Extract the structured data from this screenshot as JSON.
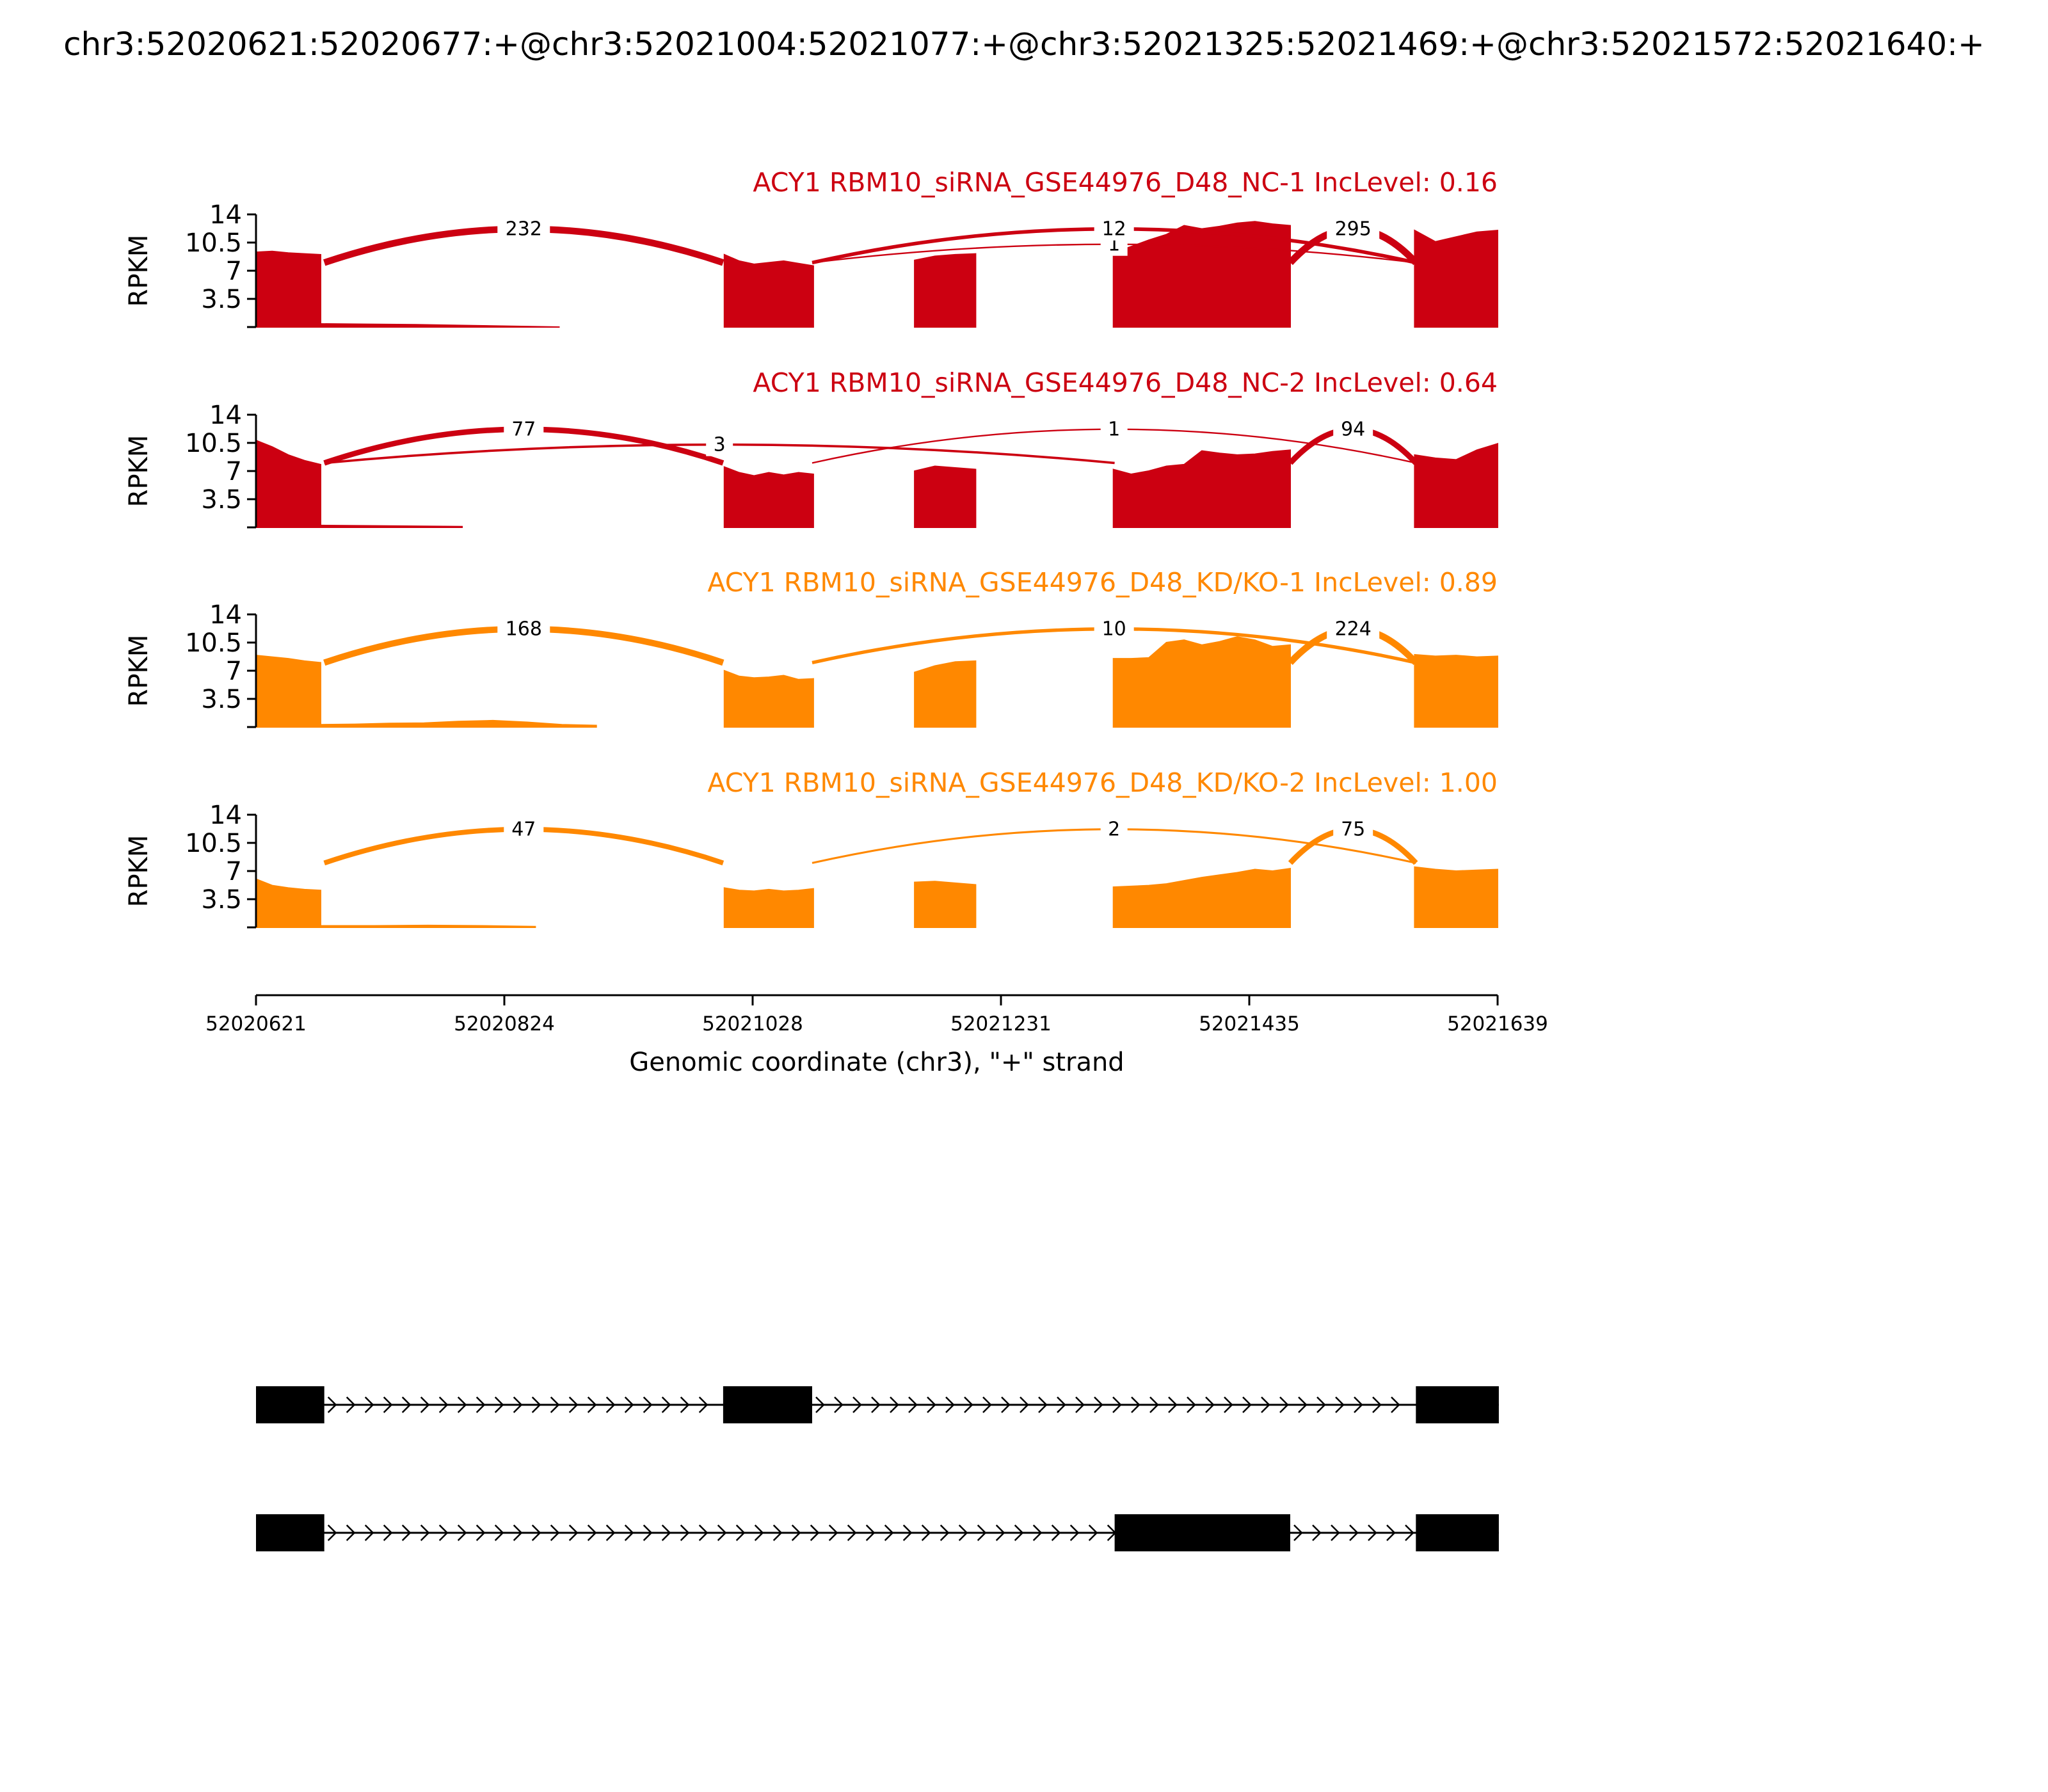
{
  "title": "chr3:52020621:52020677:+@chr3:52021004:52021077:+@chr3:52021325:52021469:+@chr3:52021572:52021640:+",
  "chart_data": {
    "type": "sashimi",
    "xlabel": "Genomic coordinate (chr3), \"+\" strand",
    "ylabel": "RPKM",
    "xlim": [
      52020621,
      52021639
    ],
    "xticks": [
      "52020621",
      "52020824",
      "52021028",
      "52021231",
      "52021435",
      "52021639"
    ],
    "ylim": [
      0,
      14
    ],
    "yticks": [
      "3.5",
      "7",
      "10.5",
      "14"
    ],
    "exons": [
      [
        52020621,
        52020677
      ],
      [
        52021004,
        52021077
      ],
      [
        52021161,
        52021211
      ],
      [
        52021325,
        52021469
      ],
      [
        52021572,
        52021640
      ]
    ],
    "panels": [
      {
        "label": "ACY1 RBM10_siRNA_GSE44976_D48_NC-1 IncLevel: 0.16",
        "color": "#cc0011",
        "coverage": [
          {
            "start": 52020621,
            "end": 52020674,
            "levels": [
              9.3,
              9.4,
              9.2,
              9.1,
              9.0
            ]
          },
          {
            "start": 52020674,
            "end": 52020870,
            "levels": [
              0.4,
              0.35,
              0.3,
              0.2,
              0.1,
              0.0
            ]
          },
          {
            "start": 52020945,
            "end": 52020945,
            "levels": [
              0
            ]
          },
          {
            "start": 52021005,
            "end": 52021078,
            "levels": [
              9.0,
              8.2,
              7.8,
              8.0,
              8.2,
              7.9,
              7.6
            ]
          },
          {
            "start": 52021161,
            "end": 52021211,
            "levels": [
              8.3,
              8.8,
              9.0,
              9.1
            ]
          },
          {
            "start": 52021324,
            "end": 52021469,
            "levels": [
              9.2,
              10.0,
              10.8,
              11.5,
              12.6,
              12.2,
              12.5,
              12.9,
              13.1,
              12.8,
              12.6
            ]
          },
          {
            "start": 52021571,
            "end": 52021639,
            "levels": [
              12.0,
              10.6,
              11.2,
              11.8,
              12.0
            ]
          }
        ],
        "junctions": [
          {
            "from": 52020677,
            "to": 52021004,
            "count": "232",
            "side": "up"
          },
          {
            "from": 52021077,
            "to": 52021572,
            "count": "1",
            "side": "down"
          },
          {
            "from": 52021077,
            "to": 52021572,
            "count": "12",
            "side": "up"
          },
          {
            "from": 52021469,
            "to": 52021572,
            "count": "295",
            "side": "up"
          }
        ]
      },
      {
        "label": "ACY1 RBM10_siRNA_GSE44976_D48_NC-2 IncLevel: 0.64",
        "color": "#cc0011",
        "coverage": [
          {
            "start": 52020621,
            "end": 52020674,
            "levels": [
              10.8,
              10.0,
              9.0,
              8.3,
              7.8
            ]
          },
          {
            "start": 52020674,
            "end": 52020790,
            "levels": [
              0.25,
              0.2,
              0.15,
              0.1
            ]
          },
          {
            "start": 52021005,
            "end": 52021078,
            "levels": [
              7.5,
              6.8,
              6.4,
              6.8,
              6.5,
              6.8,
              6.6
            ]
          },
          {
            "start": 52021161,
            "end": 52021211,
            "levels": [
              7.0,
              7.6,
              7.4,
              7.2
            ]
          },
          {
            "start": 52021324,
            "end": 52021469,
            "levels": [
              7.2,
              6.6,
              7.0,
              7.6,
              7.8,
              9.5,
              9.2,
              9.0,
              9.1,
              9.4,
              9.6
            ]
          },
          {
            "start": 52021571,
            "end": 52021639,
            "levels": [
              9.0,
              8.6,
              8.4,
              9.6,
              10.4
            ]
          }
        ],
        "junctions": [
          {
            "from": 52020677,
            "to": 52021004,
            "count": "77",
            "side": "up"
          },
          {
            "from": 52020677,
            "to": 52021325,
            "count": "3",
            "side": "down"
          },
          {
            "from": 52021077,
            "to": 52021572,
            "count": "1",
            "side": "up"
          },
          {
            "from": 52021469,
            "to": 52021572,
            "count": "94",
            "side": "up"
          }
        ]
      },
      {
        "label": "ACY1 RBM10_siRNA_GSE44976_D48_KD/KO-1 IncLevel: 0.89",
        "color": "#ff8800",
        "coverage": [
          {
            "start": 52020621,
            "end": 52020674,
            "levels": [
              8.9,
              8.7,
              8.5,
              8.2,
              8.0
            ]
          },
          {
            "start": 52020674,
            "end": 52020900,
            "levels": [
              0.3,
              0.35,
              0.45,
              0.5,
              0.7,
              0.8,
              0.6,
              0.3,
              0.2
            ]
          },
          {
            "start": 52021005,
            "end": 52021078,
            "levels": [
              7.0,
              6.3,
              6.1,
              6.2,
              6.4,
              5.9,
              6.0
            ]
          },
          {
            "start": 52021161,
            "end": 52021211,
            "levels": [
              6.8,
              7.6,
              8.1,
              8.2
            ]
          },
          {
            "start": 52021324,
            "end": 52021469,
            "levels": [
              8.5,
              8.5,
              8.6,
              10.5,
              10.8,
              10.2,
              10.6,
              11.2,
              10.8,
              10.0,
              10.2
            ]
          },
          {
            "start": 52021571,
            "end": 52021639,
            "levels": [
              9.0,
              8.8,
              8.9,
              8.7,
              8.8
            ]
          }
        ],
        "junctions": [
          {
            "from": 52020677,
            "to": 52021004,
            "count": "168",
            "side": "up"
          },
          {
            "from": 52021077,
            "to": 52021572,
            "count": "10",
            "side": "up"
          },
          {
            "from": 52021469,
            "to": 52021572,
            "count": "224",
            "side": "up"
          }
        ]
      },
      {
        "label": "ACY1 RBM10_siRNA_GSE44976_D48_KD/KO-2 IncLevel: 1.00",
        "color": "#ff8800",
        "coverage": [
          {
            "start": 52020621,
            "end": 52020674,
            "levels": [
              6.0,
              5.2,
              4.9,
              4.7,
              4.6
            ]
          },
          {
            "start": 52020674,
            "end": 52020850,
            "levels": [
              0.2,
              0.2,
              0.25,
              0.2,
              0.1
            ]
          },
          {
            "start": 52021005,
            "end": 52021078,
            "levels": [
              4.9,
              4.6,
              4.5,
              4.7,
              4.5,
              4.6,
              4.8
            ]
          },
          {
            "start": 52021161,
            "end": 52021211,
            "levels": [
              5.6,
              5.7,
              5.5,
              5.3
            ]
          },
          {
            "start": 52021324,
            "end": 52021469,
            "levels": [
              5.0,
              5.1,
              5.2,
              5.4,
              5.8,
              6.2,
              6.5,
              6.8,
              7.2,
              7.0,
              7.3
            ]
          },
          {
            "start": 52021571,
            "end": 52021639,
            "levels": [
              7.5,
              7.2,
              7.0,
              7.1,
              7.2
            ]
          }
        ],
        "junctions": [
          {
            "from": 52020677,
            "to": 52021004,
            "count": "47",
            "side": "up"
          },
          {
            "from": 52021077,
            "to": 52021572,
            "count": "2",
            "side": "up"
          },
          {
            "from": 52021469,
            "to": 52021572,
            "count": "75",
            "side": "up"
          }
        ]
      }
    ],
    "isoforms": [
      [
        [
          52020621,
          52020677
        ],
        [
          52021004,
          52021077
        ],
        [
          52021572,
          52021640
        ]
      ],
      [
        [
          52020621,
          52020677
        ],
        [
          52021325,
          52021469
        ],
        [
          52021572,
          52021640
        ]
      ]
    ]
  }
}
